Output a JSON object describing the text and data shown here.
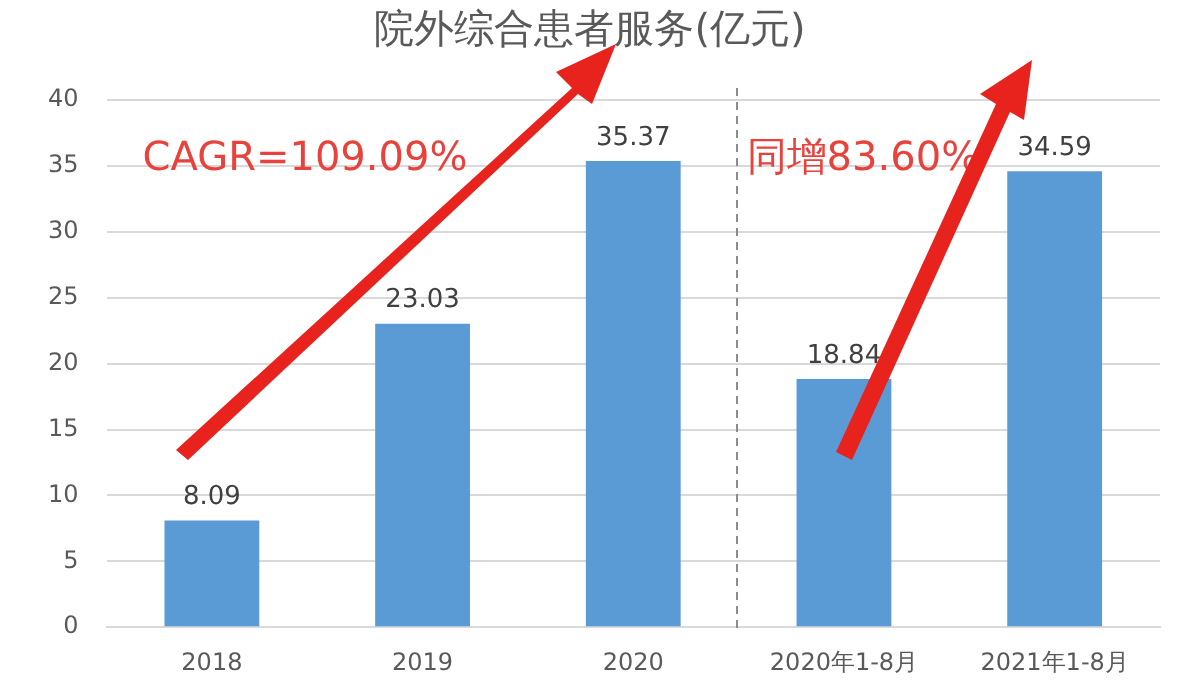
{
  "chart_data": {
    "type": "bar",
    "title": "院外综合患者服务(亿元)",
    "categories": [
      "2018",
      "2019",
      "2020",
      "2020年1-8月",
      "2021年1-8月"
    ],
    "values": [
      8.09,
      23.03,
      35.37,
      18.84,
      34.59
    ],
    "color": "#5b9bd5",
    "ylim": [
      0,
      40
    ],
    "yticks": [
      0,
      5,
      10,
      15,
      20,
      25,
      30,
      35,
      40
    ],
    "grid": "y",
    "data_labels": true,
    "legend": false,
    "annotations": [
      "CAGR=109.09%",
      "同增83.60%"
    ]
  }
}
